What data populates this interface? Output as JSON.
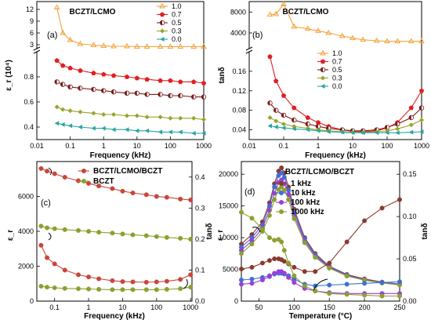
{
  "colors": {
    "s10": "#f2a23a",
    "s07": "#e21e1e",
    "s05": "#7a1c1c",
    "s03": "#9aa32a",
    "s00": "#2aa6a0",
    "k1": "#8b3a2e",
    "k10": "#3c6fd6",
    "k100": "#9b3fd6",
    "k1000": "#8aa12e",
    "bc": "#c9453a",
    "bz": "#8aa12e"
  },
  "chart_data": [
    {
      "panel": "(a)",
      "type": "line",
      "title": "BCZT/LCMO",
      "xscale": "log",
      "xlim": [
        0.01,
        1000
      ],
      "xlabel": "Frequency (kHz)",
      "ylabel": "ε_r (10⁴)",
      "broken_y": true,
      "ylim_low": [
        0.3,
        1.0
      ],
      "ylim_high": [
        2,
        14
      ],
      "yticks_low": [
        "0.4",
        "0.6",
        "0.8"
      ],
      "yticks_high": [
        "3",
        "6",
        "9",
        "12"
      ],
      "xticks": [
        "0.01",
        "0.1",
        "1",
        "10",
        "100",
        "1000"
      ],
      "x": [
        0.04,
        0.06,
        0.1,
        0.2,
        0.5,
        1,
        2,
        5,
        10,
        20,
        50,
        100,
        200,
        500,
        1000
      ],
      "series": [
        {
          "name": "1.0",
          "values": [
            12.5,
            6.0,
            4.2,
            3.2,
            2.9,
            2.7,
            2.6,
            2.6,
            2.5,
            2.5,
            2.5,
            2.5,
            2.5,
            2.5,
            2.5
          ]
        },
        {
          "name": "0.7",
          "values": [
            0.93,
            0.89,
            0.87,
            0.85,
            0.83,
            0.82,
            0.81,
            0.8,
            0.79,
            0.78,
            0.77,
            0.77,
            0.76,
            0.76,
            0.75
          ]
        },
        {
          "name": "0.5",
          "values": [
            0.76,
            0.74,
            0.72,
            0.71,
            0.7,
            0.69,
            0.68,
            0.67,
            0.67,
            0.66,
            0.66,
            0.65,
            0.65,
            0.64,
            0.64
          ]
        },
        {
          "name": "0.3",
          "values": [
            0.56,
            0.54,
            0.53,
            0.52,
            0.51,
            0.5,
            0.5,
            0.49,
            0.49,
            0.48,
            0.48,
            0.47,
            0.47,
            0.47,
            0.46
          ]
        },
        {
          "name": "0.0",
          "values": [
            0.43,
            0.42,
            0.41,
            0.4,
            0.39,
            0.39,
            0.38,
            0.38,
            0.37,
            0.37,
            0.36,
            0.36,
            0.36,
            0.35,
            0.35
          ]
        }
      ]
    },
    {
      "panel": "(b)",
      "type": "line",
      "title": "BCZT/LCMO",
      "xscale": "log",
      "xlim": [
        0.01,
        1000
      ],
      "xlabel": "Frequency (kHz)",
      "ylabel": "tanδ",
      "broken_y": true,
      "ylim_low": [
        0.02,
        0.2
      ],
      "ylim_high": [
        1000,
        10000
      ],
      "yticks_low": [
        "0.04",
        "0.08",
        "0.12",
        "0.16"
      ],
      "yticks_high": [
        "4000",
        "8000"
      ],
      "xticks": [
        "0.01",
        "0.1",
        "1",
        "10",
        "100",
        "1000"
      ],
      "x": [
        0.04,
        0.06,
        0.1,
        0.2,
        0.5,
        1,
        2,
        5,
        10,
        20,
        50,
        100,
        200,
        500,
        1000
      ],
      "series": [
        {
          "name": "1.0",
          "values": [
            7500,
            7600,
            9500,
            5200,
            4800,
            4400,
            4000,
            3400,
            3000,
            2700,
            2500,
            2400,
            2400,
            2400,
            2400
          ]
        },
        {
          "name": "0.7",
          "values": [
            0.19,
            0.14,
            0.11,
            0.085,
            0.065,
            0.055,
            0.047,
            0.04,
            0.037,
            0.036,
            0.038,
            0.044,
            0.055,
            0.085,
            0.12
          ]
        },
        {
          "name": "0.5",
          "values": [
            0.095,
            0.08,
            0.07,
            0.06,
            0.052,
            0.047,
            0.043,
            0.04,
            0.038,
            0.038,
            0.04,
            0.045,
            0.052,
            0.065,
            0.085
          ]
        },
        {
          "name": "0.3",
          "values": [
            0.065,
            0.058,
            0.052,
            0.047,
            0.043,
            0.04,
            0.038,
            0.036,
            0.035,
            0.035,
            0.036,
            0.038,
            0.042,
            0.05,
            0.06
          ]
        },
        {
          "name": "0.0",
          "values": [
            0.048,
            0.046,
            0.044,
            0.042,
            0.04,
            0.038,
            0.036,
            0.035,
            0.034,
            0.034,
            0.034,
            0.034,
            0.034,
            0.035,
            0.036
          ]
        }
      ]
    },
    {
      "panel": "(c)",
      "type": "line",
      "xscale": "log",
      "xlim": [
        0.03,
        1100
      ],
      "xlabel": "Frequency (kHz)",
      "ylabel": "ε_r",
      "y2label": "tanδ",
      "ylim": [
        0,
        8000
      ],
      "y2lim": [
        0,
        0.45
      ],
      "yticks": [
        "0",
        "2000",
        "4000",
        "6000"
      ],
      "y2ticks": [
        "0.0",
        "0.1",
        "0.2",
        "0.3",
        "0.4"
      ],
      "xticks": [
        "0.1",
        "1",
        "10",
        "100",
        "1000"
      ],
      "x": [
        0.04,
        0.06,
        0.1,
        0.2,
        0.5,
        1,
        2,
        5,
        10,
        20,
        50,
        100,
        200,
        500,
        1000
      ],
      "series": [
        {
          "name": "BCZT/LCMO/BCZT",
          "axis": "left",
          "values": [
            7600,
            7450,
            7300,
            7100,
            6900,
            6750,
            6600,
            6450,
            6300,
            6200,
            6100,
            6000,
            5950,
            5850,
            5800
          ]
        },
        {
          "name": "BCZT",
          "axis": "left",
          "values": [
            4300,
            4200,
            4150,
            4100,
            4050,
            4000,
            3950,
            3900,
            3850,
            3800,
            3750,
            3700,
            3650,
            3600,
            3550
          ]
        },
        {
          "name": "BCZT/LCMO/BCZT tanδ",
          "axis": "right",
          "values": [
            0.18,
            0.14,
            0.12,
            0.1,
            0.085,
            0.078,
            0.072,
            0.066,
            0.063,
            0.062,
            0.061,
            0.062,
            0.064,
            0.07,
            0.085
          ]
        },
        {
          "name": "BCZT tanδ",
          "axis": "right",
          "values": [
            0.048,
            0.045,
            0.043,
            0.041,
            0.04,
            0.039,
            0.038,
            0.037,
            0.037,
            0.037,
            0.037,
            0.037,
            0.038,
            0.04,
            0.045
          ]
        }
      ]
    },
    {
      "panel": "(d)",
      "type": "line",
      "title": "BCZT/LCMO/BCZT",
      "xlim": [
        25,
        250
      ],
      "xlabel": "Temperature (°C)",
      "ylabel": "ε_r",
      "y2label": "tanδ",
      "ylim": [
        0,
        22000
      ],
      "y2lim": [
        0,
        0.165
      ],
      "yticks": [
        "0",
        "5000",
        "10000",
        "15000",
        "20000"
      ],
      "y2ticks": [
        "0.00",
        "0.05",
        "0.10",
        "0.15"
      ],
      "xticks": [
        "50",
        "100",
        "150",
        "200",
        "250"
      ],
      "x": [
        25,
        40,
        55,
        65,
        72,
        78,
        82,
        86,
        92,
        100,
        115,
        130,
        150,
        175,
        200,
        225,
        250
      ],
      "series": [
        {
          "name": "1 kHz",
          "axis": "left",
          "values": [
            9000,
            10500,
            12500,
            15500,
            18500,
            20500,
            21000,
            20200,
            18000,
            14500,
            10000,
            7500,
            5500,
            4200,
            3500,
            3000,
            2700
          ]
        },
        {
          "name": "10 kHz",
          "axis": "left",
          "values": [
            8500,
            10000,
            12000,
            15000,
            18000,
            19800,
            20200,
            19500,
            17500,
            14000,
            9800,
            7300,
            5400,
            4100,
            3400,
            2950,
            2650
          ]
        },
        {
          "name": "100 kHz",
          "axis": "left",
          "values": [
            8000,
            9500,
            11500,
            14300,
            17000,
            18700,
            19100,
            18500,
            16800,
            13500,
            9500,
            7100,
            5300,
            4000,
            3350,
            2900,
            2600
          ]
        },
        {
          "name": "1000 kHz",
          "axis": "left",
          "values": [
            7500,
            9000,
            11000,
            13500,
            16000,
            17600,
            18000,
            17500,
            16000,
            13000,
            9200,
            6900,
            5200,
            3950,
            3300,
            2850,
            2550
          ]
        },
        {
          "name": "1 kHz tanδ",
          "axis": "right",
          "values": [
            0.038,
            0.04,
            0.045,
            0.048,
            0.05,
            0.05,
            0.049,
            0.047,
            0.044,
            0.04,
            0.035,
            0.035,
            0.045,
            0.07,
            0.095,
            0.11,
            0.12
          ]
        },
        {
          "name": "10 kHz tanδ",
          "axis": "right",
          "values": [
            0.025,
            0.026,
            0.028,
            0.03,
            0.032,
            0.033,
            0.033,
            0.032,
            0.03,
            0.026,
            0.02,
            0.018,
            0.019,
            0.02,
            0.021,
            0.022,
            0.023
          ]
        },
        {
          "name": "100 kHz tanδ",
          "axis": "right",
          "values": [
            0.02,
            0.021,
            0.025,
            0.029,
            0.033,
            0.035,
            0.035,
            0.033,
            0.028,
            0.022,
            0.015,
            0.012,
            0.01,
            0.009,
            0.009,
            0.009,
            0.009
          ]
        },
        {
          "name": "1000 kHz tanδ",
          "axis": "right",
          "values": [
            0.105,
            0.098,
            0.085,
            0.075,
            0.072,
            0.073,
            0.07,
            0.06,
            0.045,
            0.03,
            0.018,
            0.012,
            0.009,
            0.008,
            0.007,
            0.006,
            0.006
          ]
        }
      ]
    }
  ]
}
